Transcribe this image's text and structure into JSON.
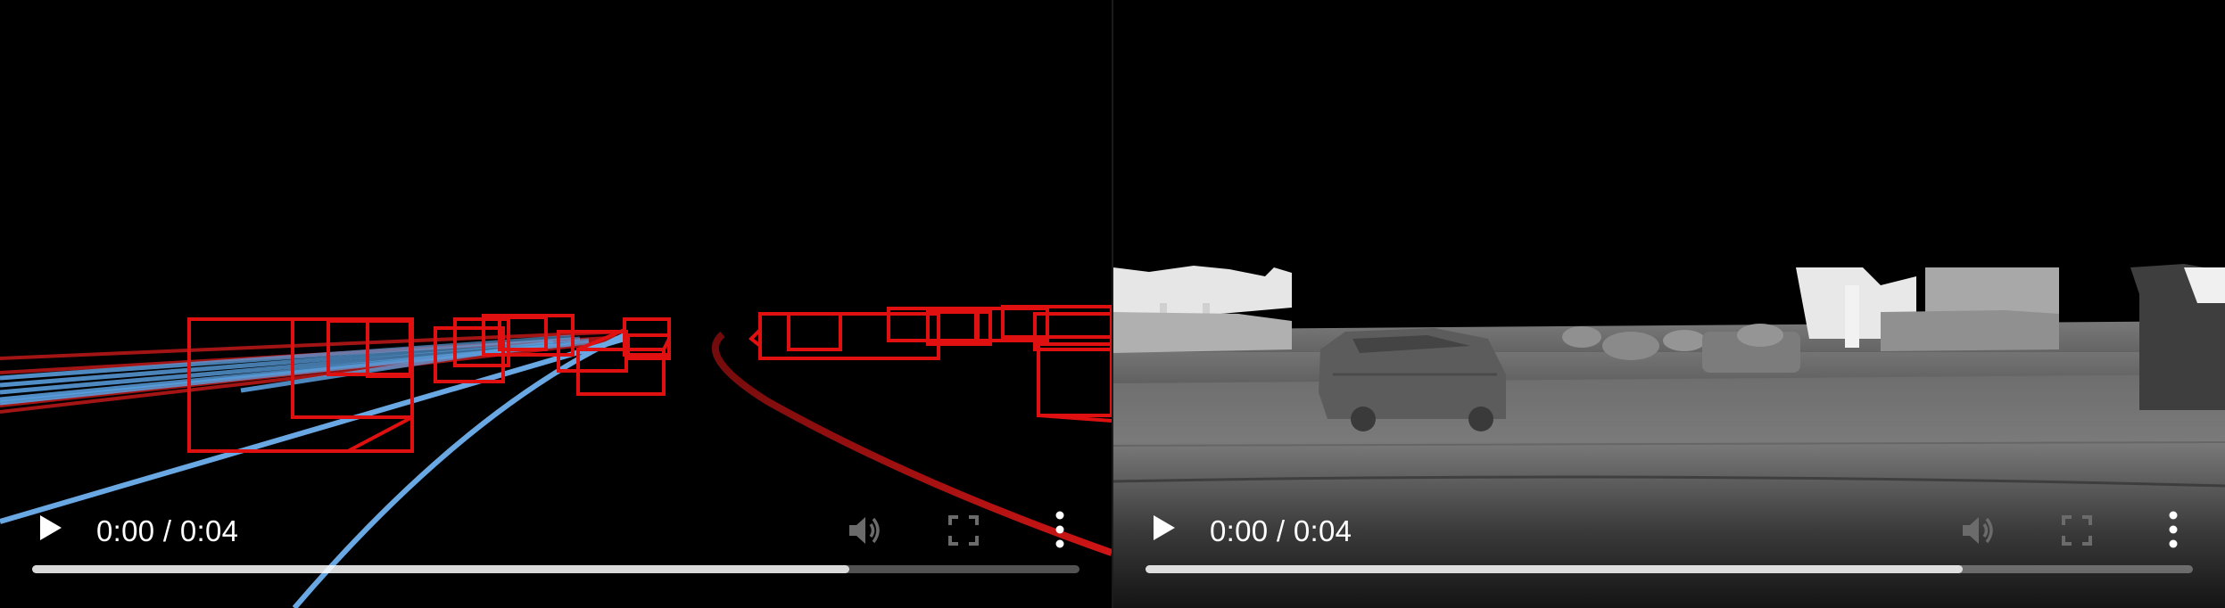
{
  "players": [
    {
      "id": "bbox-video",
      "current_time": "0:00",
      "separator": "/",
      "duration": "0:04",
      "time_display": "0:00 / 0:04",
      "progress_fraction": 0.78,
      "icons": [
        "play-icon",
        "volume-icon",
        "fullscreen-icon",
        "more-options-icon"
      ],
      "colors": {
        "box": "#e01010",
        "lane": "#5aa0e0",
        "lane_far": "#c81818"
      }
    },
    {
      "id": "depth-video",
      "current_time": "0:00",
      "separator": "/",
      "duration": "0:04",
      "time_display": "0:00 / 0:04",
      "progress_fraction": 0.78,
      "icons": [
        "play-icon",
        "volume-icon",
        "fullscreen-icon",
        "more-options-icon"
      ],
      "colors": {
        "near": "#ffffff",
        "far": "#2a2a2a"
      }
    }
  ],
  "colors": {
    "background": "#000000",
    "controls_text": "#ffffff",
    "progress_track": "#555555",
    "progress_fill": "#c8c8c8"
  }
}
